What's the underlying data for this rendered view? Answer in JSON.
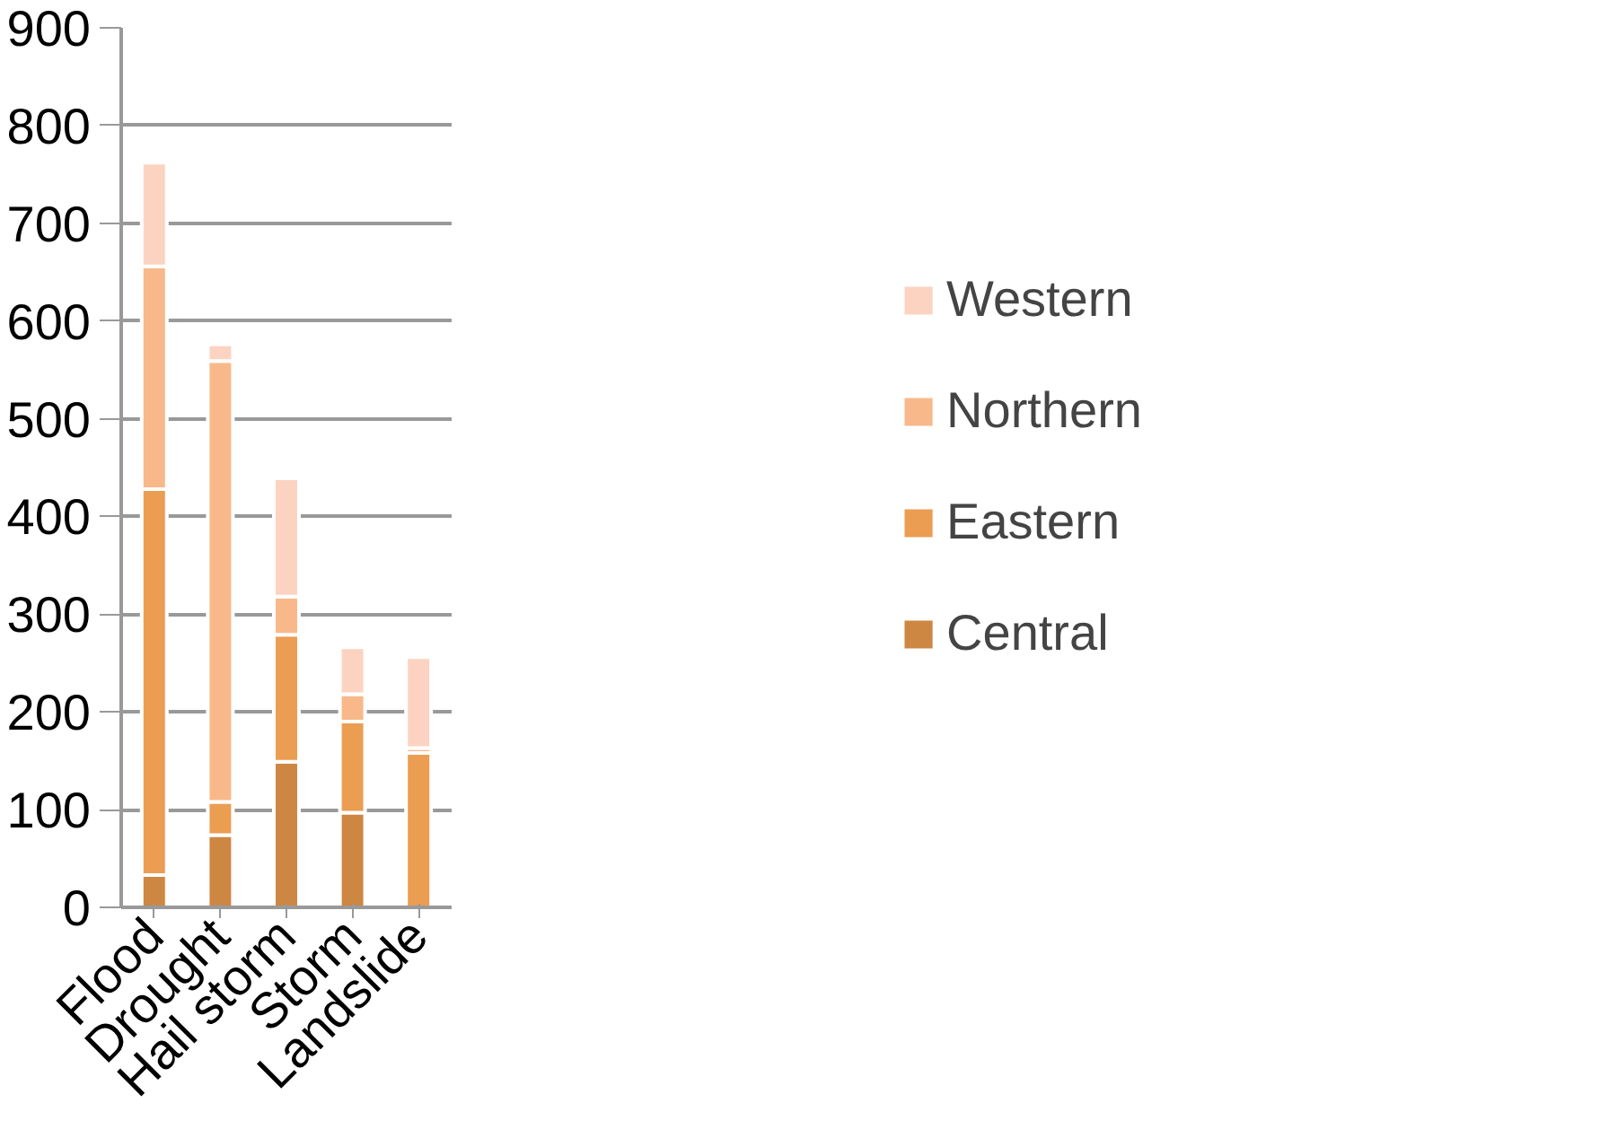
{
  "chart_data": {
    "type": "bar",
    "stacked": true,
    "categories": [
      "Flood",
      "Drought",
      "Hail storm",
      "Storm",
      "Landslide"
    ],
    "series": [
      {
        "name": "Central",
        "color": "#cd8742",
        "values": [
          33,
          74,
          149,
          97,
          0
        ]
      },
      {
        "name": "Eastern",
        "color": "#eb9d52",
        "values": [
          395,
          34,
          130,
          93,
          158
        ]
      },
      {
        "name": "Northern",
        "color": "#f9b88a",
        "values": [
          228,
          451,
          39,
          28,
          5
        ]
      },
      {
        "name": "Western",
        "color": "#fcd3c1",
        "values": [
          106,
          17,
          121,
          48,
          93
        ]
      }
    ],
    "ylim": [
      0,
      900
    ],
    "yticks": [
      0,
      100,
      200,
      300,
      400,
      500,
      600,
      700,
      800,
      900
    ],
    "grid": "y",
    "legend": "right"
  }
}
